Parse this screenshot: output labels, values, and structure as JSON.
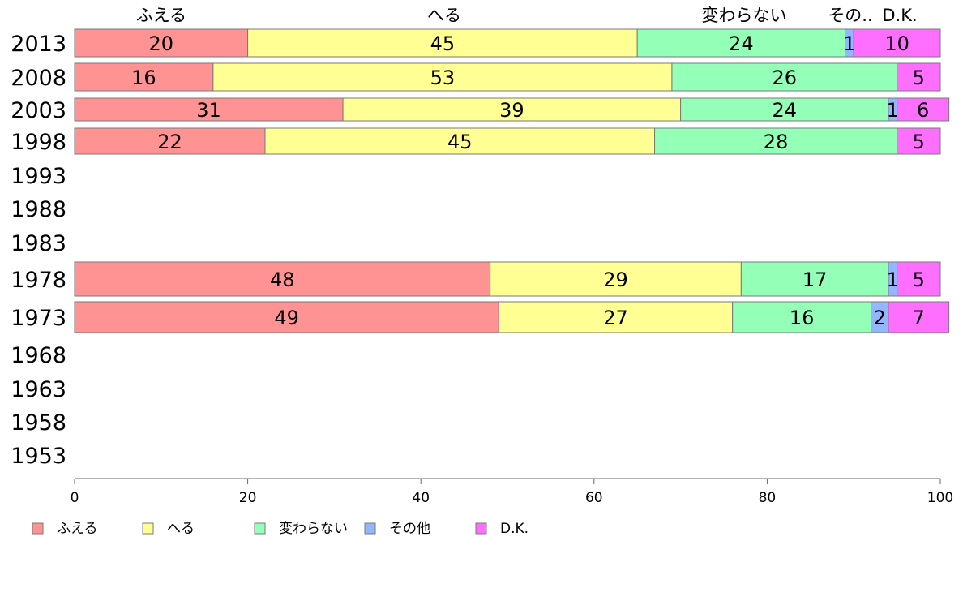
{
  "chart_data": {
    "type": "bar",
    "orientation": "horizontal",
    "stacked": true,
    "categories": [
      "2013",
      "2008",
      "2003",
      "1998",
      "1993",
      "1988",
      "1983",
      "1978",
      "1973",
      "1968",
      "1963",
      "1958",
      "1953"
    ],
    "series": [
      {
        "name": "ふえる",
        "color": "#ff9393",
        "values": [
          20,
          16,
          31,
          22,
          null,
          null,
          null,
          48,
          49,
          null,
          null,
          null,
          null
        ],
        "labels": [
          "20",
          "16",
          "31",
          "22",
          "",
          "",
          "",
          "48",
          "49",
          "",
          "",
          "",
          ""
        ]
      },
      {
        "name": "へる",
        "color": "#ffff93",
        "values": [
          45,
          53,
          39,
          45,
          null,
          null,
          null,
          29,
          27,
          null,
          null,
          null,
          null
        ],
        "labels": [
          "45",
          "53",
          "39",
          "45",
          "",
          "",
          "",
          "29",
          "27",
          "",
          "",
          "",
          ""
        ]
      },
      {
        "name": "変わらない",
        "color": "#93ffb7",
        "values": [
          24,
          26,
          24,
          28,
          null,
          null,
          null,
          17,
          16,
          null,
          null,
          null,
          null
        ],
        "labels": [
          "24",
          "26",
          "24",
          "28",
          "",
          "",
          "",
          "17",
          "16",
          "",
          "",
          "",
          ""
        ]
      },
      {
        "name": "その他",
        "color": "#93b7ff",
        "values": [
          1,
          0,
          1,
          0,
          null,
          null,
          null,
          1,
          2,
          null,
          null,
          null,
          null
        ],
        "labels": [
          "1",
          "",
          "1",
          "",
          "",
          "",
          "",
          "1",
          "2",
          "",
          "",
          "",
          ""
        ]
      },
      {
        "name": "D.K.",
        "color": "#ff6fff",
        "values": [
          10,
          5,
          6,
          5,
          null,
          null,
          null,
          5,
          7,
          null,
          null,
          null,
          null
        ],
        "labels": [
          "10",
          "5",
          "6",
          "5",
          "",
          "",
          "",
          "5",
          "7",
          "",
          "",
          "",
          ""
        ]
      }
    ],
    "top_labels": [
      "ふえる",
      "へる",
      "変わらない",
      "その..",
      "D.K."
    ],
    "xlim": [
      0,
      100
    ],
    "xticks": [
      "0",
      "20",
      "40",
      "60",
      "80",
      "100"
    ],
    "legend_position": "bottom-left",
    "grid": false
  }
}
